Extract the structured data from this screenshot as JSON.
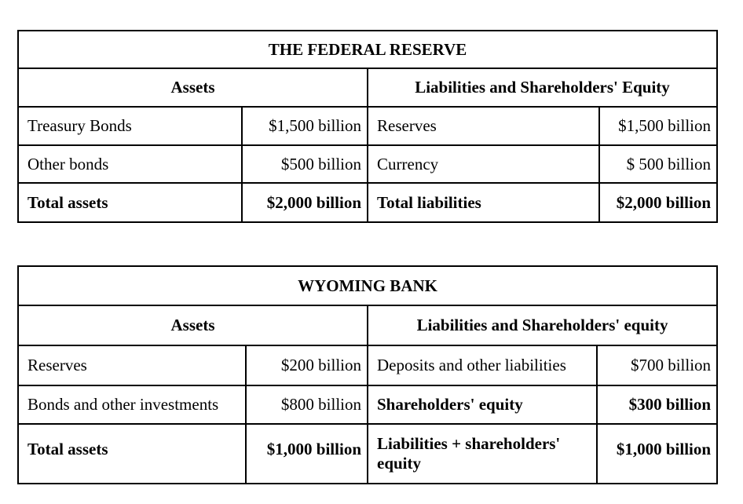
{
  "colors": {
    "border": "#000000",
    "text": "#000000",
    "background": "#ffffff"
  },
  "tables": [
    {
      "title": "THE FEDERAL RESERVE",
      "left_header": "Assets",
      "right_header": "Liabilities and Shareholders' Equity",
      "rows": [
        [
          "Treasury Bonds",
          "$1,500 billion",
          "Reserves",
          "$1,500 billion"
        ],
        [
          "Other bonds",
          "$500 billion",
          "Currency",
          "$ 500 billion"
        ],
        [
          "Total assets",
          "$2,000 billion",
          "Total liabilities",
          "$2,000 billion"
        ]
      ]
    },
    {
      "title": "WYOMING BANK",
      "left_header": "Assets",
      "right_header": "Liabilities and Shareholders' equity",
      "rows": [
        [
          "Reserves",
          "$200 billion",
          "Deposits and other liabilities",
          "$700 billion"
        ],
        [
          "Bonds and other investments",
          "$800 billion",
          "Shareholders' equity",
          "$300 billion"
        ],
        [
          "Total assets",
          "$1,000 billion",
          "Liabilities + shareholders' equity",
          "$1,000 billion"
        ]
      ]
    }
  ]
}
